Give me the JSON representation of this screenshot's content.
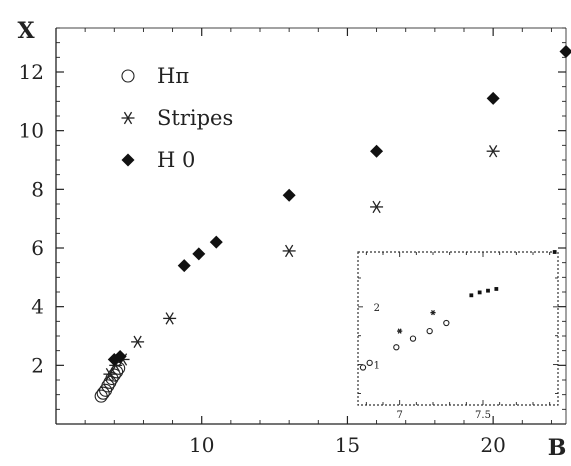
{
  "chart_data": [
    {
      "type": "scatter",
      "xlabel": "B",
      "ylabel": "X",
      "xlim": [
        5,
        22.5
      ],
      "ylim": [
        0,
        13.5
      ],
      "xticks": [
        10,
        15,
        20
      ],
      "yticks": [
        2,
        4,
        6,
        8,
        10,
        12
      ],
      "grid": false,
      "legend_position": "top-left",
      "series": [
        {
          "name": "Hπ",
          "marker": "open-circle",
          "points": [
            [
              6.55,
              0.95
            ],
            [
              6.62,
              1.05
            ],
            [
              6.7,
              1.15
            ],
            [
              6.78,
              1.3
            ],
            [
              6.85,
              1.42
            ],
            [
              6.92,
              1.55
            ],
            [
              7.0,
              1.67
            ],
            [
              7.08,
              1.78
            ],
            [
              7.15,
              1.9
            ]
          ]
        },
        {
          "name": "Stripes",
          "marker": "asterisk",
          "points": [
            [
              6.85,
              1.7
            ],
            [
              7.05,
              2.0
            ],
            [
              7.3,
              2.2
            ],
            [
              7.8,
              2.8
            ],
            [
              8.9,
              3.6
            ],
            [
              13.0,
              5.9
            ],
            [
              16.0,
              7.4
            ],
            [
              20.0,
              9.3
            ]
          ]
        },
        {
          "name": "H 0",
          "marker": "filled-diamond",
          "points": [
            [
              7.0,
              2.2
            ],
            [
              7.2,
              2.3
            ],
            [
              9.4,
              5.4
            ],
            [
              9.9,
              5.8
            ],
            [
              10.5,
              6.2
            ],
            [
              13.0,
              7.8
            ],
            [
              16.0,
              9.3
            ],
            [
              20.0,
              11.1
            ],
            [
              22.6,
              12.7
            ]
          ]
        }
      ]
    },
    {
      "type": "scatter",
      "inset": true,
      "xlim": [
        6.75,
        7.95
      ],
      "ylim": [
        0.3,
        2.95
      ],
      "xticks": [
        7,
        7.5
      ],
      "yticks": [
        1,
        2
      ],
      "series": [
        {
          "marker": "open-circle",
          "points": [
            [
              6.78,
              0.95
            ],
            [
              6.82,
              1.03
            ],
            [
              6.98,
              1.3
            ],
            [
              7.08,
              1.45
            ],
            [
              7.18,
              1.58
            ],
            [
              7.28,
              1.72
            ]
          ]
        },
        {
          "marker": "asterisk",
          "points": [
            [
              7.0,
              1.58
            ],
            [
              7.2,
              1.9
            ]
          ]
        },
        {
          "marker": "filled-square",
          "points": [
            [
              7.43,
              2.2
            ],
            [
              7.48,
              2.25
            ],
            [
              7.53,
              2.28
            ],
            [
              7.58,
              2.31
            ],
            [
              7.93,
              2.95
            ]
          ]
        }
      ]
    }
  ]
}
